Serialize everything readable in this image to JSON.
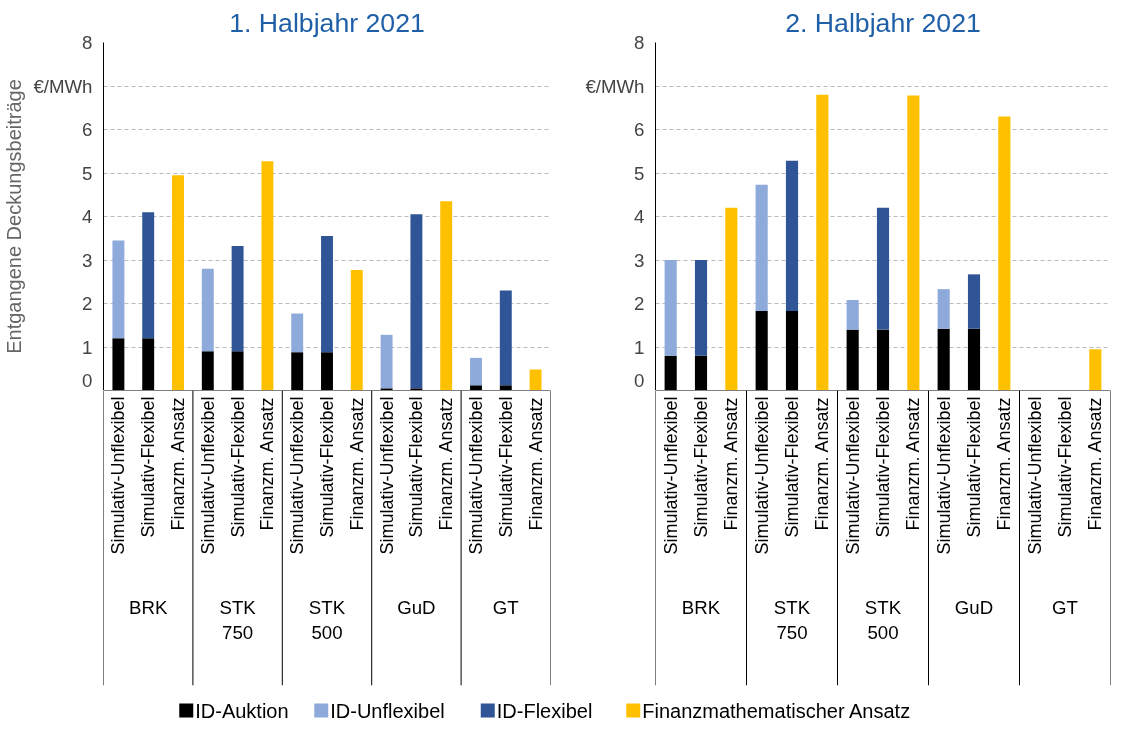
{
  "chart_data": [
    {
      "type": "bar",
      "stacked": true,
      "title": "1. Halbjahr 2021",
      "ylabel": "Entgangene Deckungsbeiträge",
      "ylim": [
        0,
        8
      ],
      "yticks": [
        0,
        1,
        2,
        3,
        4,
        5,
        6,
        {
          "value": 7,
          "label": "€/MWh"
        },
        8
      ],
      "grid": "y",
      "legend": false,
      "categories": [
        "Simulativ-Unflexibel",
        "Simulativ-Flexibel",
        "Finanzm. Ansatz",
        "Simulativ-Unflexibel",
        "Simulativ-Flexibel",
        "Finanzm. Ansatz",
        "Simulativ-Unflexibel",
        "Simulativ-Flexibel",
        "Finanzm. Ansatz",
        "Simulativ-Unflexibel",
        "Simulativ-Flexibel",
        "Finanzm. Ansatz",
        "Simulativ-Unflexibel",
        "Simulativ-Flexibel",
        "Finanzm. Ansatz"
      ],
      "annotations": [
        "BRK",
        "STK\n750",
        "STK\n500",
        "GuD",
        "GT"
      ],
      "series": [
        {
          "color": "#000000",
          "values": [
            1.2,
            1.2,
            null,
            0.9,
            0.9,
            null,
            0.88,
            0.88,
            null,
            0.05,
            0.05,
            null,
            0.12,
            0.12,
            null
          ]
        },
        {
          "color": "#8eaadb",
          "values": [
            2.25,
            null,
            null,
            1.9,
            null,
            null,
            0.89,
            null,
            null,
            1.23,
            null,
            null,
            0.63,
            null,
            null
          ]
        },
        {
          "color": "#2f5597",
          "values": [
            null,
            2.9,
            null,
            null,
            2.42,
            null,
            null,
            2.67,
            null,
            null,
            4.0,
            null,
            null,
            2.18,
            null
          ]
        },
        {
          "color": "#ffc000",
          "values": [
            null,
            null,
            4.95,
            null,
            null,
            5.27,
            null,
            null,
            2.77,
            null,
            null,
            4.35,
            null,
            null,
            0.48
          ]
        }
      ]
    },
    {
      "type": "bar",
      "stacked": true,
      "title": "2. Halbjahr 2021",
      "ylim": [
        0,
        8
      ],
      "yticks": [
        0,
        1,
        2,
        3,
        4,
        5,
        6,
        {
          "value": 7,
          "label": "€/MWh"
        },
        8
      ],
      "grid": "y",
      "legend": "bottom",
      "categories": [
        "Simulativ-Unflexibel",
        "Simulativ-Flexibel",
        "Finanzm. Ansatz",
        "Simulativ-Unflexibel",
        "Simulativ-Flexibel",
        "Finanzm. Ansatz",
        "Simulativ-Unflexibel",
        "Simulativ-Flexibel",
        "Finanzm. Ansatz",
        "Simulativ-Unflexibel",
        "Simulativ-Flexibel",
        "Finanzm. Ansatz",
        "Simulativ-Unflexibel",
        "Simulativ-Flexibel",
        "Finanzm. Ansatz"
      ],
      "annotations": [
        "BRK",
        "STK\n750",
        "STK\n500",
        "GuD",
        "GT"
      ],
      "series": [
        {
          "name": "ID-Auktion",
          "color": "#000000",
          "values": [
            0.8,
            0.8,
            null,
            1.83,
            1.83,
            null,
            1.4,
            1.4,
            null,
            1.42,
            1.42,
            null,
            null,
            null,
            null
          ]
        },
        {
          "name": "ID-Unflexibel",
          "color": "#8eaadb",
          "values": [
            2.2,
            null,
            null,
            2.9,
            null,
            null,
            0.68,
            null,
            null,
            0.91,
            null,
            null,
            null,
            null,
            null
          ]
        },
        {
          "name": "ID-Flexibel",
          "color": "#2f5597",
          "values": [
            null,
            2.2,
            null,
            null,
            3.45,
            null,
            null,
            2.8,
            null,
            null,
            1.25,
            null,
            null,
            null,
            null
          ]
        },
        {
          "name": "Finanzmathematischer Ansatz",
          "color": "#ffc000",
          "values": [
            null,
            null,
            4.2,
            null,
            null,
            6.8,
            null,
            null,
            6.78,
            null,
            null,
            6.3,
            null,
            null,
            0.95
          ]
        }
      ]
    }
  ]
}
